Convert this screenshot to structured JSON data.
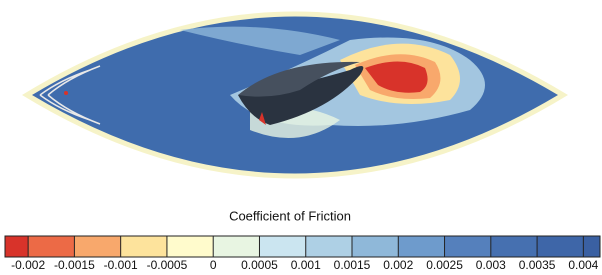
{
  "chart_data": {
    "type": "contour",
    "colorbar": {
      "label": "Coefficient of Friction",
      "xlim": [
        -0.00225,
        0.00418
      ],
      "xticks": [
        -0.002,
        -0.0015,
        -0.001,
        -0.0005,
        0,
        0.0005,
        0.001,
        0.0015,
        0.002,
        0.0025,
        0.003,
        0.0035,
        0.004
      ],
      "colors": [
        "#d8332a",
        "#ec6a46",
        "#f8a86c",
        "#fde39c",
        "#fffbcc",
        "#e8f5e2",
        "#cbe5f0",
        "#aed0e5",
        "#8fb8d9",
        "#6e9bcc",
        "#5580bc",
        "#4670b0",
        "#3e66a8",
        "#3a60a2"
      ]
    }
  }
}
